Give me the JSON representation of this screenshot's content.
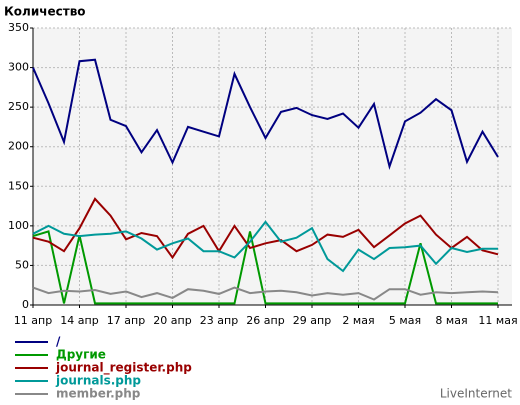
{
  "chart_data": {
    "type": "line",
    "title": "Количество",
    "categories": [
      "11 апр",
      null,
      null,
      "14 апр",
      null,
      null,
      "17 апр",
      null,
      null,
      "20 апр",
      null,
      null,
      "23 апр",
      null,
      null,
      "26 апр",
      null,
      null,
      "29 апр",
      null,
      null,
      "2 мая",
      null,
      null,
      "5 мая",
      null,
      null,
      "8 мая",
      null,
      null,
      "11 мая"
    ],
    "series": [
      {
        "name": "/",
        "color": "#000080",
        "values": [
          300,
          255,
          206,
          308,
          310,
          234,
          226,
          193,
          221,
          180,
          225,
          219,
          213,
          292,
          250,
          211,
          244,
          249,
          240,
          235,
          242,
          224,
          254,
          175,
          232,
          243,
          260,
          246,
          181,
          219,
          187
        ]
      },
      {
        "name": "Другие",
        "color": "#009900",
        "values": [
          87,
          93,
          2,
          88,
          2,
          2,
          2,
          2,
          2,
          2,
          2,
          2,
          2,
          2,
          93,
          2,
          2,
          2,
          2,
          2,
          2,
          2,
          2,
          2,
          2,
          78,
          2,
          2,
          2,
          2,
          2
        ]
      },
      {
        "name": "journal_register.php",
        "color": "#990000",
        "values": [
          85,
          80,
          68,
          97,
          134,
          113,
          83,
          91,
          87,
          60,
          90,
          100,
          68,
          100,
          72,
          78,
          82,
          68,
          76,
          89,
          86,
          95,
          73,
          88,
          103,
          113,
          89,
          72,
          86,
          69,
          64
        ]
      },
      {
        "name": "journals.php",
        "color": "#009999",
        "values": [
          90,
          100,
          90,
          87,
          89,
          90,
          93,
          84,
          70,
          78,
          84,
          68,
          68,
          60,
          80,
          105,
          80,
          85,
          97,
          58,
          43,
          70,
          58,
          72,
          73,
          75,
          52,
          72,
          67,
          71,
          71
        ]
      },
      {
        "name": "member.php",
        "color": "#888888",
        "values": [
          22,
          15,
          18,
          17,
          19,
          14,
          17,
          10,
          15,
          9,
          20,
          18,
          14,
          22,
          15,
          17,
          18,
          16,
          12,
          15,
          13,
          15,
          7,
          20,
          20,
          13,
          16,
          15,
          16,
          17,
          16
        ]
      }
    ],
    "ylim": [
      0,
      350
    ],
    "yticks": [
      0,
      50,
      100,
      150,
      200,
      250,
      300,
      350
    ],
    "grid": true,
    "watermark": "LiveInternet"
  }
}
